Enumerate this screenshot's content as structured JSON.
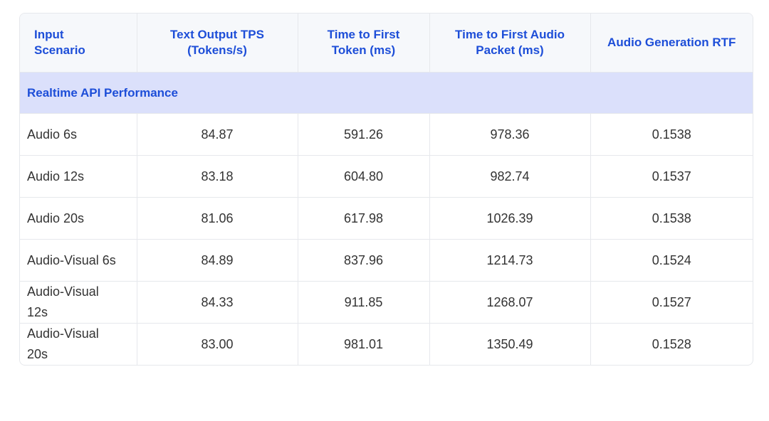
{
  "table": {
    "header": [
      "Input Scenario",
      "Text Output TPS (Tokens/s)",
      "Time to First Token (ms)",
      "Time to First Audio Packet (ms)",
      "Audio Generation RTF"
    ],
    "section": "Realtime API Performance",
    "rows": [
      [
        "Audio 6s",
        "84.87",
        "591.26",
        "978.36",
        "0.1538"
      ],
      [
        "Audio 12s",
        "83.18",
        "604.80",
        "982.74",
        "0.1537"
      ],
      [
        "Audio 20s",
        "81.06",
        "617.98",
        "1026.39",
        "0.1538"
      ],
      [
        "Audio-Visual 6s",
        "84.89",
        "837.96",
        "1214.73",
        "0.1524"
      ],
      [
        "Audio-Visual 12s",
        "84.33",
        "911.85",
        "1268.07",
        "0.1527"
      ],
      [
        "Audio-Visual 20s",
        "83.00",
        "981.01",
        "1350.49",
        "0.1528"
      ]
    ]
  }
}
